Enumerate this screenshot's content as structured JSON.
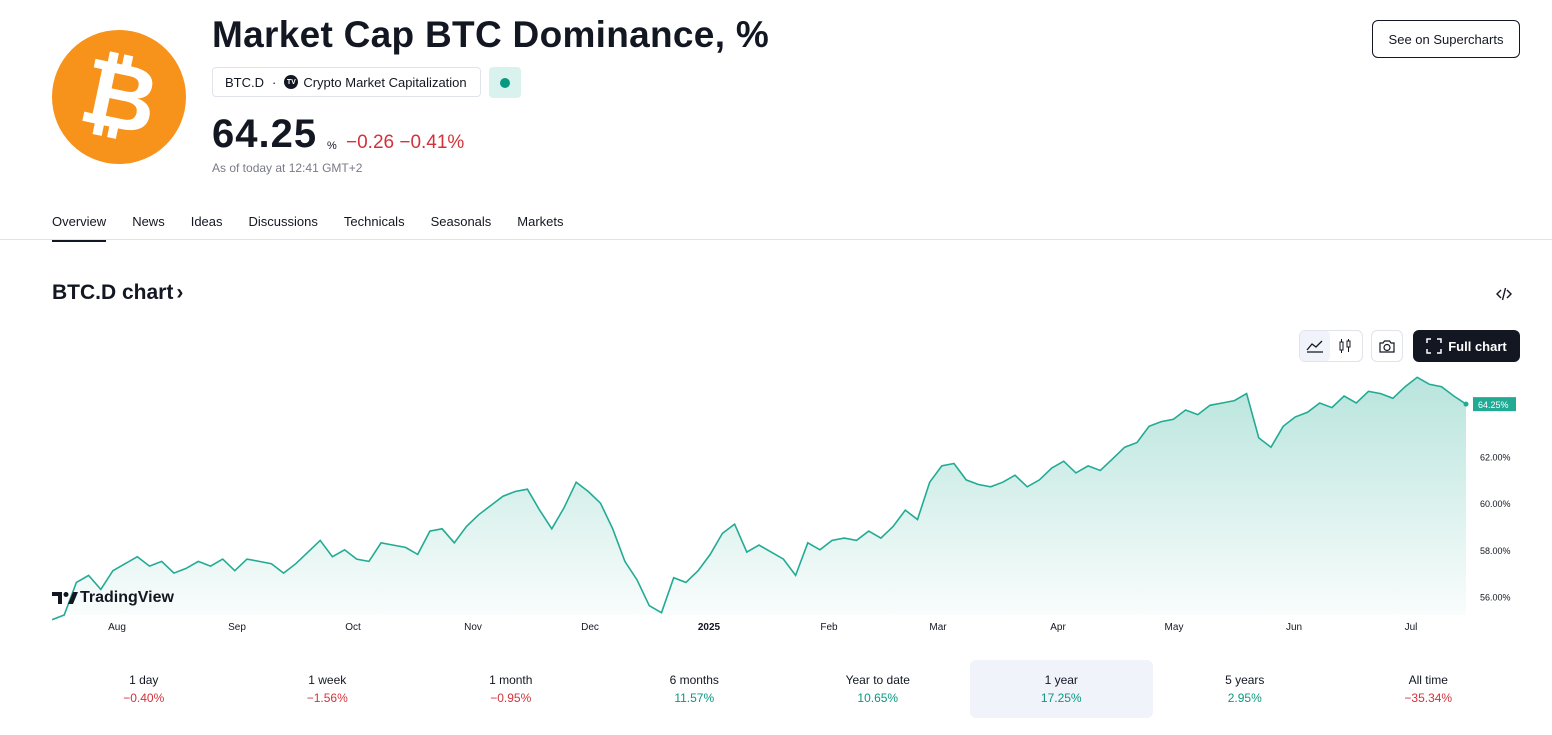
{
  "header": {
    "title": "Market Cap BTC Dominance, %",
    "symbol": "BTC.D",
    "separator": "·",
    "source": "Crypto Market Capitalization",
    "price": "64.25",
    "unit": "%",
    "change": "−0.26  −0.41%",
    "as_of": "As of today at 12:41 GMT+2",
    "supercharts_label": "See on Supercharts",
    "logo_letter": "₿",
    "market_status_color": "#089981"
  },
  "tabs": [
    "Overview",
    "News",
    "Ideas",
    "Discussions",
    "Technicals",
    "Seasonals",
    "Markets"
  ],
  "active_tab": "Overview",
  "chart_section": {
    "title": "BTC.D chart",
    "arrow": "›",
    "full_chart_label": "Full chart",
    "embed_icon": "code-icon",
    "watermark": "TradingView"
  },
  "chart_data": {
    "type": "area",
    "series": [
      {
        "values": [
          55.0,
          55.2,
          56.6,
          56.9,
          56.3,
          57.1,
          57.4,
          57.7,
          57.3,
          57.5,
          57.0,
          57.2,
          57.5,
          57.3,
          57.6,
          57.1,
          57.6,
          57.5,
          57.4,
          57.0,
          57.4,
          57.9,
          58.4,
          57.7,
          58.0,
          57.6,
          57.5,
          58.3,
          58.2,
          58.1,
          57.8,
          58.8,
          58.9,
          58.3,
          59.0,
          59.5,
          59.9,
          60.3,
          60.5,
          60.6,
          59.7,
          58.9,
          59.8,
          60.9,
          60.5,
          60.0,
          58.9,
          57.5,
          56.7,
          55.6,
          55.3,
          56.8,
          56.6,
          57.1,
          57.8,
          58.7,
          59.1,
          57.9,
          58.2,
          57.9,
          57.6,
          56.9,
          58.3,
          58.0,
          58.4,
          58.5,
          58.4,
          58.8,
          58.5,
          59.0,
          59.7,
          59.3,
          60.9,
          61.6,
          61.7,
          61.0,
          60.8,
          60.7,
          60.9,
          61.2,
          60.7,
          61.0,
          61.5,
          61.8,
          61.3,
          61.6,
          61.4,
          61.9,
          62.4,
          62.6,
          63.3,
          63.5,
          63.6,
          64.0,
          63.8,
          64.2,
          64.3,
          64.4,
          64.7,
          62.8,
          62.4,
          63.3,
          63.7,
          63.9,
          64.3,
          64.1,
          64.6,
          64.3,
          64.8,
          64.7,
          64.5,
          65.0,
          65.4,
          65.1,
          65.0,
          64.6,
          64.25
        ]
      }
    ],
    "x_labels": [
      "Aug",
      "Sep",
      "Oct",
      "Nov",
      "Dec",
      "2025",
      "Feb",
      "Mar",
      "Apr",
      "May",
      "Jun",
      "Jul"
    ],
    "y_ticks": [
      "56.00%",
      "58.00%",
      "60.00%",
      "62.00%"
    ],
    "ylim": [
      55.2,
      65.5
    ],
    "last_label": "64.25%",
    "line_color": "#22ab94",
    "fill_color": "#22ab94"
  },
  "performance": [
    {
      "label": "1 day",
      "value": "−0.40%",
      "dir": "down"
    },
    {
      "label": "1 week",
      "value": "−1.56%",
      "dir": "down"
    },
    {
      "label": "1 month",
      "value": "−0.95%",
      "dir": "down"
    },
    {
      "label": "6 months",
      "value": "11.57%",
      "dir": "up"
    },
    {
      "label": "Year to date",
      "value": "10.65%",
      "dir": "up"
    },
    {
      "label": "1 year",
      "value": "17.25%",
      "dir": "up",
      "selected": true
    },
    {
      "label": "5 years",
      "value": "2.95%",
      "dir": "up"
    },
    {
      "label": "All time",
      "value": "−35.34%",
      "dir": "down"
    }
  ]
}
